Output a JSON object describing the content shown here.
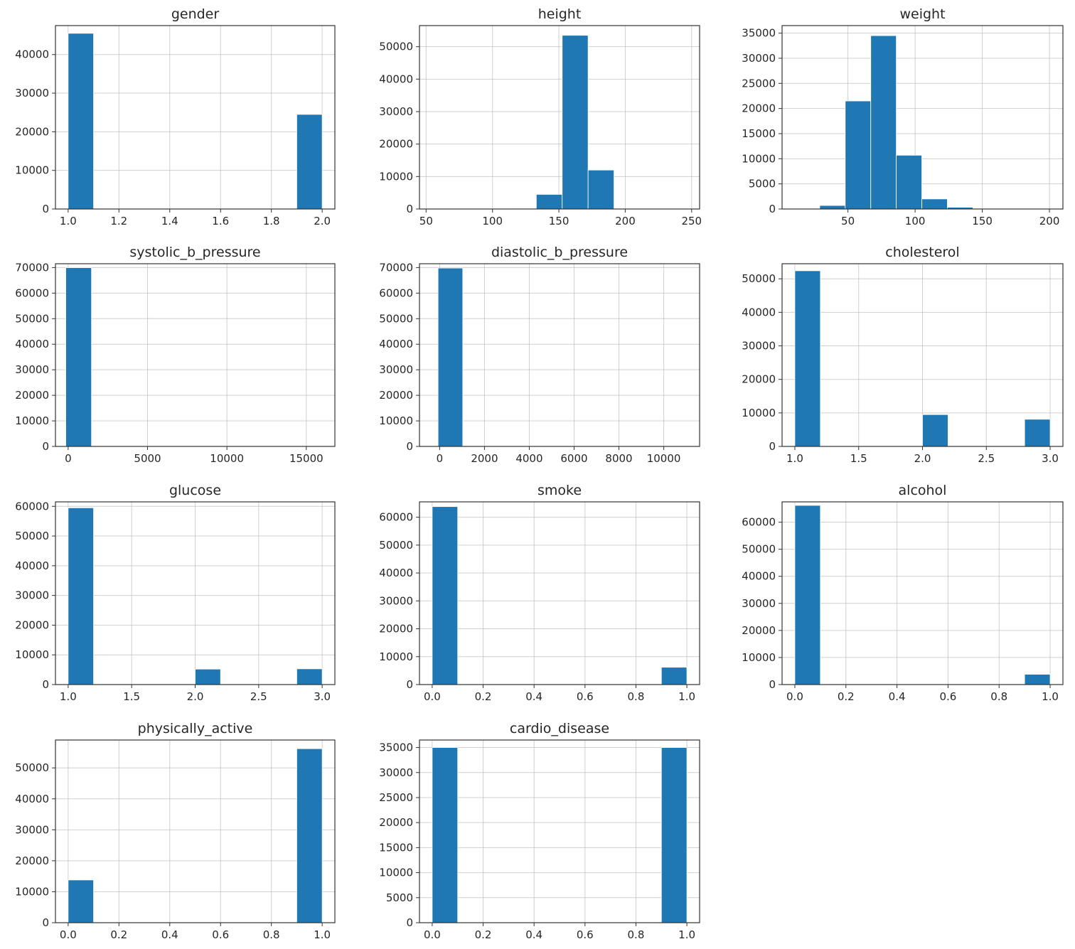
{
  "chart_data": [
    {
      "type": "bar",
      "title": "gender",
      "xlim": [
        0.95,
        2.05
      ],
      "ylim": [
        0,
        47500
      ],
      "xticks": [
        1.0,
        1.2,
        1.4,
        1.6,
        1.8,
        2.0
      ],
      "xtick_labels": [
        "1.0",
        "1.2",
        "1.4",
        "1.6",
        "1.8",
        "2.0"
      ],
      "yticks": [
        0,
        10000,
        20000,
        30000,
        40000
      ],
      "ytick_labels": [
        "0",
        "10000",
        "20000",
        "30000",
        "40000"
      ],
      "bins": [
        [
          1.0,
          1.1
        ],
        [
          1.1,
          1.2
        ],
        [
          1.2,
          1.3
        ],
        [
          1.3,
          1.4
        ],
        [
          1.4,
          1.5
        ],
        [
          1.5,
          1.6
        ],
        [
          1.6,
          1.7
        ],
        [
          1.7,
          1.8
        ],
        [
          1.8,
          1.9
        ],
        [
          1.9,
          2.0
        ]
      ],
      "values": [
        45500,
        0,
        0,
        0,
        0,
        0,
        0,
        0,
        0,
        24500
      ],
      "grid": true
    },
    {
      "type": "bar",
      "title": "height",
      "xlim": [
        45,
        256
      ],
      "ylim": [
        0,
        56500
      ],
      "xticks": [
        50,
        100,
        150,
        200,
        250
      ],
      "xtick_labels": [
        "50",
        "100",
        "150",
        "200",
        "250"
      ],
      "yticks": [
        0,
        10000,
        20000,
        30000,
        40000,
        50000
      ],
      "ytick_labels": [
        "0",
        "10000",
        "20000",
        "30000",
        "40000",
        "50000"
      ],
      "bins": [
        [
          55,
          74.5
        ],
        [
          74.5,
          94
        ],
        [
          94,
          113.5
        ],
        [
          113.5,
          133
        ],
        [
          133,
          152.5
        ],
        [
          152.5,
          172
        ],
        [
          172,
          191.5
        ],
        [
          191.5,
          211
        ],
        [
          211,
          230.5
        ],
        [
          230.5,
          250
        ]
      ],
      "values": [
        10,
        20,
        60,
        200,
        4500,
        53500,
        12000,
        100,
        10,
        5
      ],
      "grid": true
    },
    {
      "type": "bar",
      "title": "weight",
      "xlim": [
        1,
        210
      ],
      "ylim": [
        0,
        36500
      ],
      "xticks": [
        50,
        100,
        150,
        200
      ],
      "xtick_labels": [
        "50",
        "100",
        "150",
        "200"
      ],
      "yticks": [
        0,
        5000,
        10000,
        15000,
        20000,
        25000,
        30000,
        35000
      ],
      "ytick_labels": [
        "0",
        "5000",
        "10000",
        "15000",
        "20000",
        "25000",
        "30000",
        "35000"
      ],
      "bins": [
        [
          10,
          29
        ],
        [
          29,
          48
        ],
        [
          48,
          67
        ],
        [
          67,
          86
        ],
        [
          86,
          105
        ],
        [
          105,
          124
        ],
        [
          124,
          143
        ],
        [
          143,
          162
        ],
        [
          162,
          181
        ],
        [
          181,
          200
        ]
      ],
      "values": [
        20,
        700,
        21500,
        34500,
        10700,
        2000,
        350,
        60,
        20,
        10
      ],
      "grid": true
    },
    {
      "type": "bar",
      "title": "systolic_b_pressure",
      "xlim": [
        -800,
        16800
      ],
      "ylim": [
        0,
        71500
      ],
      "xticks": [
        0,
        5000,
        10000,
        15000
      ],
      "xtick_labels": [
        "0",
        "5000",
        "10000",
        "15000"
      ],
      "yticks": [
        0,
        10000,
        20000,
        30000,
        40000,
        50000,
        60000,
        70000
      ],
      "ytick_labels": [
        "0",
        "10000",
        "20000",
        "30000",
        "40000",
        "50000",
        "60000",
        "70000"
      ],
      "bins": [
        [
          -150,
          1470
        ],
        [
          1470,
          3090
        ],
        [
          3090,
          4710
        ],
        [
          4710,
          6330
        ],
        [
          6330,
          7950
        ],
        [
          7950,
          9570
        ],
        [
          9570,
          11190
        ],
        [
          11190,
          12810
        ],
        [
          12810,
          14430
        ],
        [
          14430,
          16050
        ]
      ],
      "values": [
        69950,
        10,
        5,
        5,
        3,
        2,
        2,
        2,
        2,
        3
      ],
      "grid": true
    },
    {
      "type": "bar",
      "title": "diastolic_b_pressure",
      "xlim": [
        -900,
        11600
      ],
      "ylim": [
        0,
        71500
      ],
      "xticks": [
        0,
        2000,
        4000,
        6000,
        8000,
        10000
      ],
      "xtick_labels": [
        "0",
        "2000",
        "4000",
        "6000",
        "8000",
        "10000"
      ],
      "yticks": [
        0,
        10000,
        20000,
        30000,
        40000,
        50000,
        60000,
        70000
      ],
      "ytick_labels": [
        "0",
        "10000",
        "20000",
        "30000",
        "40000",
        "50000",
        "60000",
        "70000"
      ],
      "bins": [
        [
          -70,
          1030
        ],
        [
          1030,
          2130
        ],
        [
          2130,
          3230
        ],
        [
          3230,
          4330
        ],
        [
          4330,
          5430
        ],
        [
          5430,
          6530
        ],
        [
          6530,
          7630
        ],
        [
          7630,
          8730
        ],
        [
          8730,
          9830
        ],
        [
          9830,
          11000
        ]
      ],
      "values": [
        69800,
        150,
        10,
        5,
        5,
        3,
        3,
        3,
        5,
        10
      ],
      "grid": true
    },
    {
      "type": "bar",
      "title": "cholesterol",
      "xlim": [
        0.9,
        3.1
      ],
      "ylim": [
        0,
        54500
      ],
      "xticks": [
        1.0,
        1.5,
        2.0,
        2.5,
        3.0
      ],
      "xtick_labels": [
        "1.0",
        "1.5",
        "2.0",
        "2.5",
        "3.0"
      ],
      "yticks": [
        0,
        10000,
        20000,
        30000,
        40000,
        50000
      ],
      "ytick_labels": [
        "0",
        "10000",
        "20000",
        "30000",
        "40000",
        "50000"
      ],
      "bins": [
        [
          1.0,
          1.2
        ],
        [
          1.2,
          1.4
        ],
        [
          1.4,
          1.6
        ],
        [
          1.6,
          1.8
        ],
        [
          1.8,
          2.0
        ],
        [
          2.0,
          2.2
        ],
        [
          2.2,
          2.4
        ],
        [
          2.4,
          2.6
        ],
        [
          2.6,
          2.8
        ],
        [
          2.8,
          3.0
        ]
      ],
      "values": [
        52400,
        0,
        0,
        0,
        0,
        9500,
        0,
        0,
        0,
        8100
      ],
      "grid": true
    },
    {
      "type": "bar",
      "title": "glucose",
      "xlim": [
        0.9,
        3.1
      ],
      "ylim": [
        0,
        61500
      ],
      "xticks": [
        1.0,
        1.5,
        2.0,
        2.5,
        3.0
      ],
      "xtick_labels": [
        "1.0",
        "1.5",
        "2.0",
        "2.5",
        "3.0"
      ],
      "yticks": [
        0,
        10000,
        20000,
        30000,
        40000,
        50000,
        60000
      ],
      "ytick_labels": [
        "0",
        "10000",
        "20000",
        "30000",
        "40000",
        "50000",
        "60000"
      ],
      "bins": [
        [
          1.0,
          1.2
        ],
        [
          1.2,
          1.4
        ],
        [
          1.4,
          1.6
        ],
        [
          1.6,
          1.8
        ],
        [
          1.8,
          2.0
        ],
        [
          2.0,
          2.2
        ],
        [
          2.2,
          2.4
        ],
        [
          2.4,
          2.6
        ],
        [
          2.6,
          2.8
        ],
        [
          2.8,
          3.0
        ]
      ],
      "values": [
        59500,
        0,
        0,
        0,
        0,
        5200,
        0,
        0,
        0,
        5300
      ],
      "grid": true
    },
    {
      "type": "bar",
      "title": "smoke",
      "xlim": [
        -0.05,
        1.05
      ],
      "ylim": [
        0,
        65500
      ],
      "xticks": [
        0.0,
        0.2,
        0.4,
        0.6,
        0.8,
        1.0
      ],
      "xtick_labels": [
        "0.0",
        "0.2",
        "0.4",
        "0.6",
        "0.8",
        "1.0"
      ],
      "yticks": [
        0,
        10000,
        20000,
        30000,
        40000,
        50000,
        60000
      ],
      "ytick_labels": [
        "0",
        "10000",
        "20000",
        "30000",
        "40000",
        "50000",
        "60000"
      ],
      "bins": [
        [
          0.0,
          0.1
        ],
        [
          0.1,
          0.2
        ],
        [
          0.2,
          0.3
        ],
        [
          0.3,
          0.4
        ],
        [
          0.4,
          0.5
        ],
        [
          0.5,
          0.6
        ],
        [
          0.6,
          0.7
        ],
        [
          0.7,
          0.8
        ],
        [
          0.8,
          0.9
        ],
        [
          0.9,
          1.0
        ]
      ],
      "values": [
        63800,
        0,
        0,
        0,
        0,
        0,
        0,
        0,
        0,
        6200
      ],
      "grid": true
    },
    {
      "type": "bar",
      "title": "alcohol",
      "xlim": [
        -0.05,
        1.05
      ],
      "ylim": [
        0,
        67500
      ],
      "xticks": [
        0.0,
        0.2,
        0.4,
        0.6,
        0.8,
        1.0
      ],
      "xtick_labels": [
        "0.0",
        "0.2",
        "0.4",
        "0.6",
        "0.8",
        "1.0"
      ],
      "yticks": [
        0,
        10000,
        20000,
        30000,
        40000,
        50000,
        60000
      ],
      "ytick_labels": [
        "0",
        "10000",
        "20000",
        "30000",
        "40000",
        "50000",
        "60000"
      ],
      "bins": [
        [
          0.0,
          0.1
        ],
        [
          0.1,
          0.2
        ],
        [
          0.2,
          0.3
        ],
        [
          0.3,
          0.4
        ],
        [
          0.4,
          0.5
        ],
        [
          0.5,
          0.6
        ],
        [
          0.6,
          0.7
        ],
        [
          0.7,
          0.8
        ],
        [
          0.8,
          0.9
        ],
        [
          0.9,
          1.0
        ]
      ],
      "values": [
        66200,
        0,
        0,
        0,
        0,
        0,
        0,
        0,
        0,
        3800
      ],
      "grid": true
    },
    {
      "type": "bar",
      "title": "physically_active",
      "xlim": [
        -0.05,
        1.05
      ],
      "ylim": [
        0,
        59000
      ],
      "xticks": [
        0.0,
        0.2,
        0.4,
        0.6,
        0.8,
        1.0
      ],
      "xtick_labels": [
        "0.0",
        "0.2",
        "0.4",
        "0.6",
        "0.8",
        "1.0"
      ],
      "yticks": [
        0,
        10000,
        20000,
        30000,
        40000,
        50000
      ],
      "ytick_labels": [
        "0",
        "10000",
        "20000",
        "30000",
        "40000",
        "50000"
      ],
      "bins": [
        [
          0.0,
          0.1
        ],
        [
          0.1,
          0.2
        ],
        [
          0.2,
          0.3
        ],
        [
          0.3,
          0.4
        ],
        [
          0.4,
          0.5
        ],
        [
          0.5,
          0.6
        ],
        [
          0.6,
          0.7
        ],
        [
          0.7,
          0.8
        ],
        [
          0.8,
          0.9
        ],
        [
          0.9,
          1.0
        ]
      ],
      "values": [
        13800,
        0,
        0,
        0,
        0,
        0,
        0,
        0,
        0,
        56200
      ],
      "grid": true
    },
    {
      "type": "bar",
      "title": "cardio_disease",
      "xlim": [
        -0.05,
        1.05
      ],
      "ylim": [
        0,
        36500
      ],
      "xticks": [
        0.0,
        0.2,
        0.4,
        0.6,
        0.8,
        1.0
      ],
      "xtick_labels": [
        "0.0",
        "0.2",
        "0.4",
        "0.6",
        "0.8",
        "1.0"
      ],
      "yticks": [
        0,
        5000,
        10000,
        15000,
        20000,
        25000,
        30000,
        35000
      ],
      "ytick_labels": [
        "0",
        "5000",
        "10000",
        "15000",
        "20000",
        "25000",
        "30000",
        "35000"
      ],
      "bins": [
        [
          0.0,
          0.1
        ],
        [
          0.1,
          0.2
        ],
        [
          0.2,
          0.3
        ],
        [
          0.3,
          0.4
        ],
        [
          0.4,
          0.5
        ],
        [
          0.5,
          0.6
        ],
        [
          0.6,
          0.7
        ],
        [
          0.7,
          0.8
        ],
        [
          0.8,
          0.9
        ],
        [
          0.9,
          1.0
        ]
      ],
      "values": [
        35000,
        0,
        0,
        0,
        0,
        0,
        0,
        0,
        0,
        35000
      ],
      "grid": true
    }
  ],
  "colors": {
    "bar": "#1f77b4",
    "bar_edge": "#ffffff",
    "grid": "#b0b0b0",
    "axes": "#333333",
    "text": "#262626"
  }
}
